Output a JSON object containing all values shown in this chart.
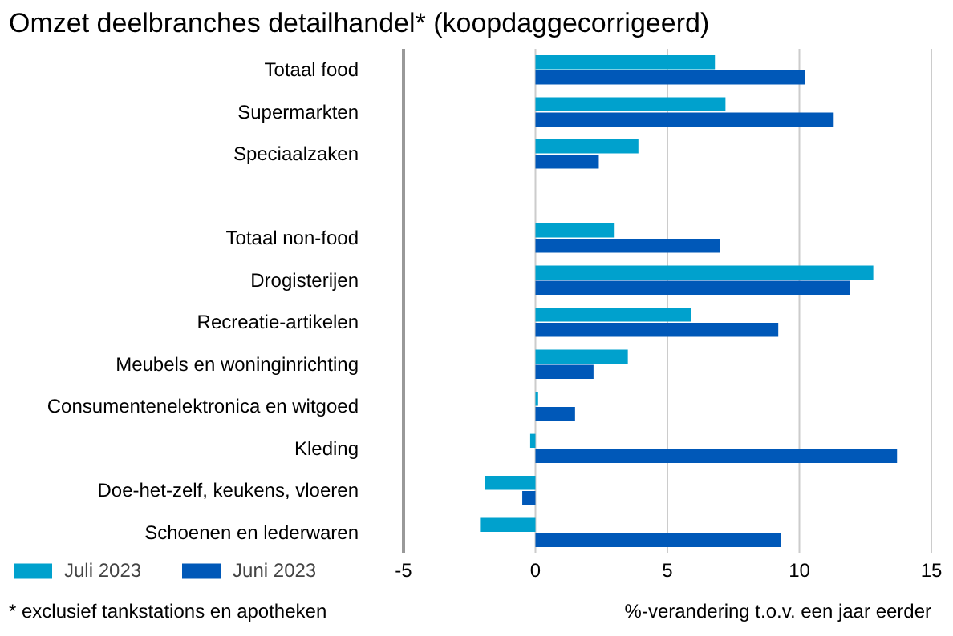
{
  "chart_data": {
    "type": "bar",
    "orientation": "horizontal",
    "title": "Omzet deelbranches detailhandel* (koopdaggecorrigeerd)",
    "categories": [
      "Totaal food",
      "Supermarkten",
      "Speciaalzaken",
      null,
      "Totaal non-food",
      "Drogisterijen",
      "Recreatie-artikelen",
      "Meubels en woninginrichting",
      "Consumentenelektronica en witgoed",
      "Kleding",
      "Doe-het-zelf, keukens, vloeren",
      "Schoenen en lederwaren"
    ],
    "series": [
      {
        "name": "Juli 2023",
        "color": "#00a1cd",
        "values": [
          6.8,
          7.2,
          3.9,
          null,
          3.0,
          12.8,
          5.9,
          3.5,
          0.1,
          -0.2,
          -1.9,
          -2.1
        ]
      },
      {
        "name": "Juni 2023",
        "color": "#0058b8",
        "values": [
          10.2,
          11.3,
          2.4,
          null,
          7.0,
          11.9,
          9.2,
          2.2,
          1.5,
          13.7,
          -0.5,
          9.3
        ]
      }
    ],
    "xlim": [
      -5,
      15
    ],
    "xticks": [
      -5,
      0,
      5,
      10,
      15
    ],
    "xlabel": "%-verandering t.o.v. een jaar eerder",
    "grid": "x",
    "legend": "bottom left",
    "annotations": [
      "* exclusief tankstations en apotheken"
    ]
  }
}
